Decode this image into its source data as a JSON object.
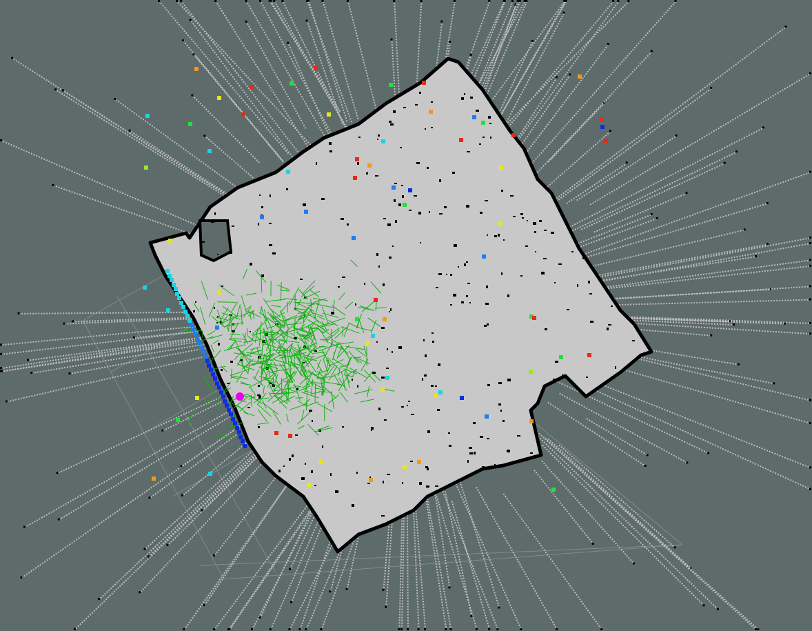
{
  "viewport": {
    "background_color": "#5e6b6b",
    "grid_color": "#8a9494",
    "free_space_color": "#c8c8c8",
    "obstacle_color": "#000000",
    "scan_ray_color": "#bdbdbd",
    "particle_color": "#12b012",
    "robot_color": "#ee00ee"
  },
  "scan_point_colors": [
    "#0a2ee6",
    "#1e7ef0",
    "#1ad4e0",
    "#20e040",
    "#9ee620",
    "#e6e61a",
    "#f09a1a",
    "#e62a1a"
  ]
}
